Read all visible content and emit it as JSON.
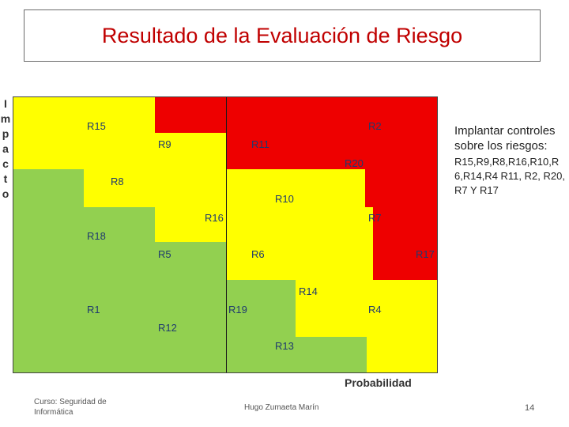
{
  "title": "Resultado de la Evaluación de Riesgo",
  "y_axis_letters": [
    "I",
    "m",
    "p",
    "a",
    "c",
    "t",
    "o"
  ],
  "x_axis_label": "Probabilidad",
  "colors": {
    "red": "#ee0000",
    "yellow": "#ffff00",
    "green": "#92d050",
    "title": "#c00000",
    "label": "#1f3a6e"
  },
  "risks": [
    "R15",
    "R2",
    "R9",
    "R11",
    "R20",
    "R8",
    "R10",
    "R16",
    "R7",
    "R18",
    "R5",
    "R6",
    "R17",
    "R14",
    "R1",
    "R19",
    "R4",
    "R12",
    "R13"
  ],
  "side_panel": {
    "heading": "Implantar controles sobre los riesgos:",
    "list": "R15,R9,R8,R16,R10,R6,R14,R4 R11, R2, R20, R7 Y R17"
  },
  "footer": {
    "course": "Curso: Seguridad de Informática",
    "author": "Hugo Zumaeta Marín",
    "page": "14"
  }
}
